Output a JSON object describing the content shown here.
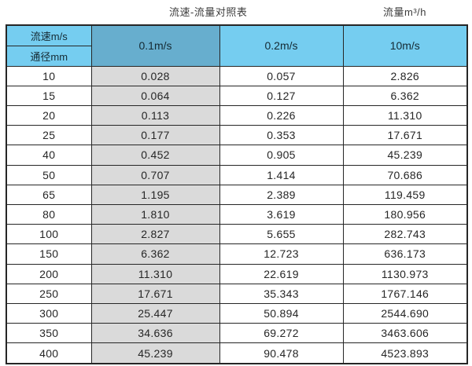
{
  "titles": {
    "left": "流速-流量对照表",
    "right": "流量m³/h"
  },
  "table": {
    "corner_top": "流速m/s",
    "corner_bottom": "通径mm",
    "columns": [
      "0.1m/s",
      "0.2m/s",
      "10m/s"
    ],
    "rows": [
      {
        "diameter": "10",
        "values": [
          "0.028",
          "0.057",
          "2.826"
        ]
      },
      {
        "diameter": "15",
        "values": [
          "0.064",
          "0.127",
          "6.362"
        ]
      },
      {
        "diameter": "20",
        "values": [
          "0.113",
          "0.226",
          "11.310"
        ]
      },
      {
        "diameter": "25",
        "values": [
          "0.177",
          "0.353",
          "17.671"
        ]
      },
      {
        "diameter": "40",
        "values": [
          "0.452",
          "0.905",
          "45.239"
        ]
      },
      {
        "diameter": "50",
        "values": [
          "0.707",
          "1.414",
          "70.686"
        ]
      },
      {
        "diameter": "65",
        "values": [
          "1.195",
          "2.389",
          "119.459"
        ]
      },
      {
        "diameter": "80",
        "values": [
          "1.810",
          "3.619",
          "180.956"
        ]
      },
      {
        "diameter": "100",
        "values": [
          "2.827",
          "5.655",
          "282.743"
        ]
      },
      {
        "diameter": "150",
        "values": [
          "6.362",
          "12.723",
          "636.173"
        ]
      },
      {
        "diameter": "200",
        "values": [
          "11.310",
          "22.619",
          "1130.973"
        ]
      },
      {
        "diameter": "250",
        "values": [
          "17.671",
          "35.343",
          "1767.146"
        ]
      },
      {
        "diameter": "300",
        "values": [
          "25.447",
          "50.894",
          "2544.690"
        ]
      },
      {
        "diameter": "350",
        "values": [
          "34.636",
          "69.272",
          "3463.606"
        ]
      },
      {
        "diameter": "400",
        "values": [
          "45.239",
          "90.478",
          "4523.893"
        ]
      }
    ]
  },
  "colors": {
    "header_blue": "#75cdf0",
    "header_blue_dark": "#67aece",
    "column_gray": "#dadada",
    "border": "#262626"
  },
  "chart_data": {
    "type": "table",
    "title": "流速-流量对照表",
    "right_unit_label": "流量m³/h",
    "column_header_label": "流速m/s",
    "row_header_label": "通径mm",
    "flow_velocity_columns_m_per_s": [
      0.1,
      0.2,
      10
    ],
    "rows": [
      {
        "diameter_mm": 10,
        "flow_m3_per_h": [
          0.028,
          0.057,
          2.826
        ]
      },
      {
        "diameter_mm": 15,
        "flow_m3_per_h": [
          0.064,
          0.127,
          6.362
        ]
      },
      {
        "diameter_mm": 20,
        "flow_m3_per_h": [
          0.113,
          0.226,
          11.31
        ]
      },
      {
        "diameter_mm": 25,
        "flow_m3_per_h": [
          0.177,
          0.353,
          17.671
        ]
      },
      {
        "diameter_mm": 40,
        "flow_m3_per_h": [
          0.452,
          0.905,
          45.239
        ]
      },
      {
        "diameter_mm": 50,
        "flow_m3_per_h": [
          0.707,
          1.414,
          70.686
        ]
      },
      {
        "diameter_mm": 65,
        "flow_m3_per_h": [
          1.195,
          2.389,
          119.459
        ]
      },
      {
        "diameter_mm": 80,
        "flow_m3_per_h": [
          1.81,
          3.619,
          180.956
        ]
      },
      {
        "diameter_mm": 100,
        "flow_m3_per_h": [
          2.827,
          5.655,
          282.743
        ]
      },
      {
        "diameter_mm": 150,
        "flow_m3_per_h": [
          6.362,
          12.723,
          636.173
        ]
      },
      {
        "diameter_mm": 200,
        "flow_m3_per_h": [
          11.31,
          22.619,
          1130.973
        ]
      },
      {
        "diameter_mm": 250,
        "flow_m3_per_h": [
          17.671,
          35.343,
          1767.146
        ]
      },
      {
        "diameter_mm": 300,
        "flow_m3_per_h": [
          25.447,
          50.894,
          2544.69
        ]
      },
      {
        "diameter_mm": 350,
        "flow_m3_per_h": [
          34.636,
          69.272,
          3463.606
        ]
      },
      {
        "diameter_mm": 400,
        "flow_m3_per_h": [
          45.239,
          90.478,
          4523.893
        ]
      }
    ]
  }
}
